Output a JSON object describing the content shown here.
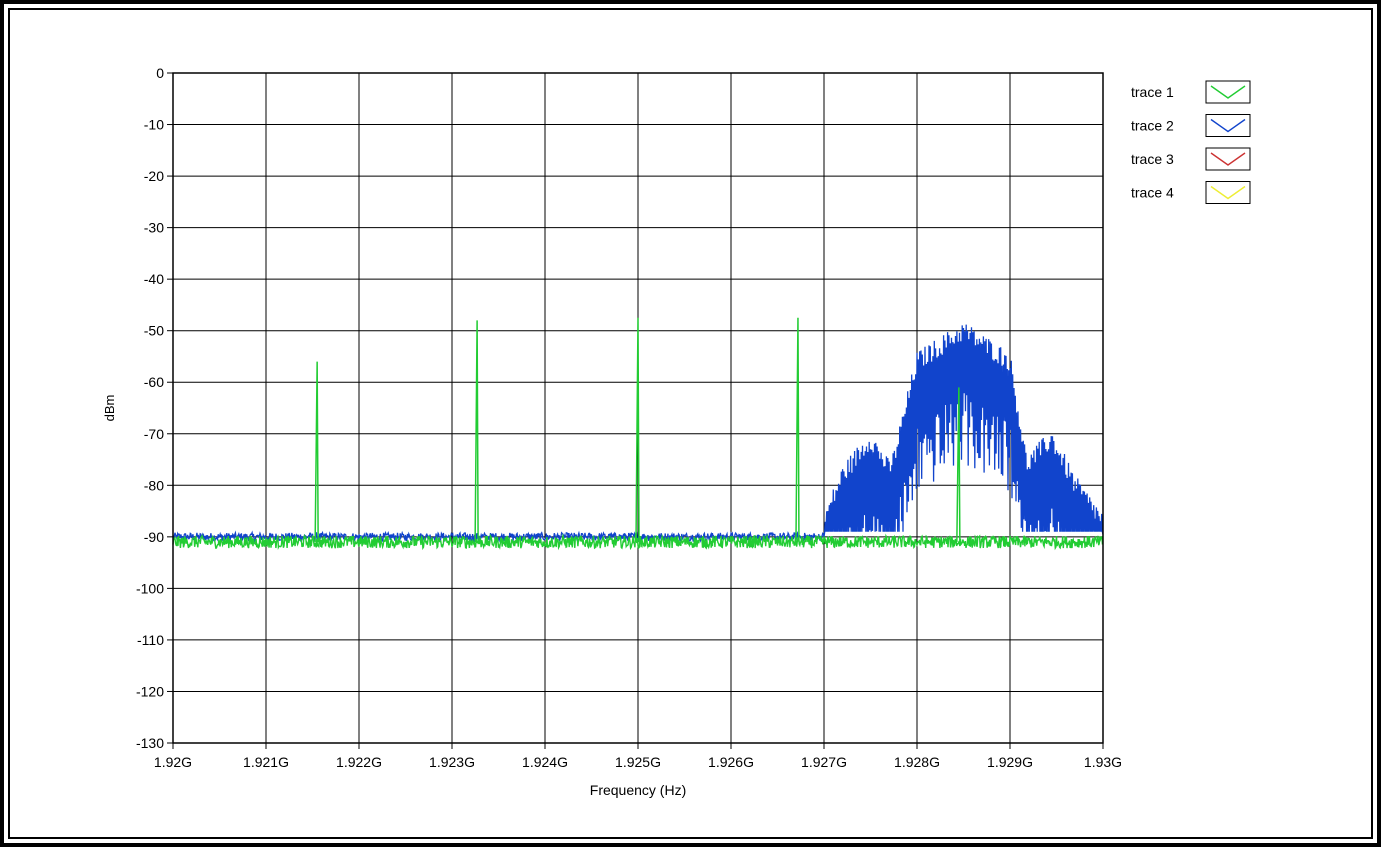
{
  "chart_data": {
    "type": "line",
    "xlabel": "Frequency (Hz)",
    "ylabel": "dBm",
    "xlim": [
      1.92,
      1.93
    ],
    "ylim": [
      -130,
      0
    ],
    "x_tick_values": [
      1.92,
      1.921,
      1.922,
      1.923,
      1.924,
      1.925,
      1.926,
      1.927,
      1.928,
      1.929,
      1.93
    ],
    "x_ticks": [
      "1.92G",
      "1.921G",
      "1.922G",
      "1.923G",
      "1.924G",
      "1.925G",
      "1.926G",
      "1.927G",
      "1.928G",
      "1.929G",
      "1.93G"
    ],
    "y_ticks": [
      0,
      -10,
      -20,
      -30,
      -40,
      -50,
      -60,
      -70,
      -80,
      -90,
      -100,
      -110,
      -120,
      -130
    ],
    "grid": true,
    "legend_position": "top-right",
    "series": [
      {
        "name": "trace 1",
        "color": "#22cc33",
        "noise_floor": -91,
        "peaks": [
          {
            "x": 1.92155,
            "y": -56
          },
          {
            "x": 1.92327,
            "y": -48
          },
          {
            "x": 1.925,
            "y": -47.5
          },
          {
            "x": 1.92672,
            "y": -47.5
          },
          {
            "x": 1.92845,
            "y": -61
          }
        ]
      },
      {
        "name": "trace 2",
        "color": "#1144cc",
        "noise_floor": -90,
        "envelope": [
          {
            "x": 1.927,
            "y": -89
          },
          {
            "x": 1.9272,
            "y": -80
          },
          {
            "x": 1.9275,
            "y": -73
          },
          {
            "x": 1.9277,
            "y": -79
          },
          {
            "x": 1.92775,
            "y": -77
          },
          {
            "x": 1.928,
            "y": -58
          },
          {
            "x": 1.9285,
            "y": -52
          },
          {
            "x": 1.929,
            "y": -58
          },
          {
            "x": 1.92918,
            "y": -78
          },
          {
            "x": 1.92945,
            "y": -73
          },
          {
            "x": 1.9297,
            "y": -82
          },
          {
            "x": 1.93,
            "y": -89
          }
        ]
      },
      {
        "name": "trace 3",
        "color": "#cc3333"
      },
      {
        "name": "trace 4",
        "color": "#eeee33"
      }
    ]
  }
}
